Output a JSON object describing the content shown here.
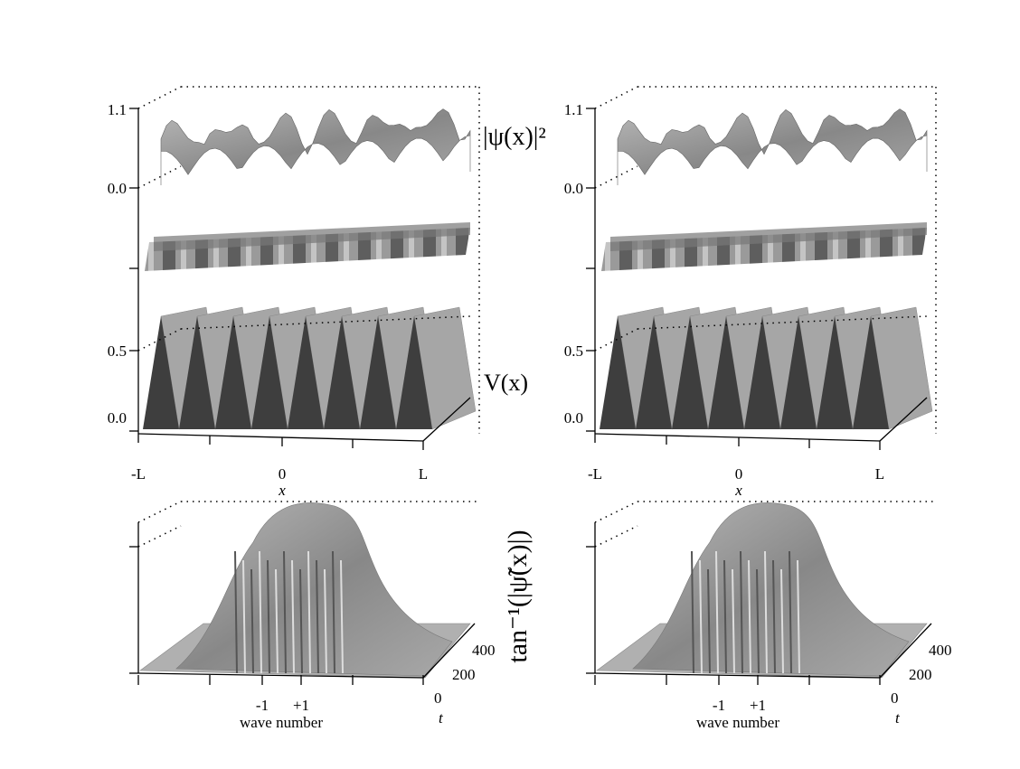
{
  "panels": [
    {
      "psi_ticks": [
        "1.1",
        "0.0"
      ],
      "v_ticks": [
        "0.5",
        "0.0"
      ],
      "x_ticks": [
        "-L",
        "0",
        "L"
      ],
      "x_label": "x",
      "k_ticks": [
        "-1",
        "+1"
      ],
      "k_label": "wave number",
      "t_ticks": [
        "0",
        "200",
        "400"
      ],
      "t_label": "t"
    },
    {
      "psi_ticks": [
        "1.1",
        "0.0"
      ],
      "v_ticks": [
        "0.5",
        "0.0"
      ],
      "x_ticks": [
        "-L",
        "0",
        "L"
      ],
      "x_label": "x",
      "k_ticks": [
        "-1",
        "+1"
      ],
      "k_label": "wave number",
      "t_ticks": [
        "0",
        "200",
        "400"
      ],
      "t_label": "t"
    }
  ],
  "labels": {
    "psi": "|ψ(x)|²",
    "potential": "V(x)",
    "spectrum": "tan⁻¹(|ψ̃(x)|)"
  }
}
